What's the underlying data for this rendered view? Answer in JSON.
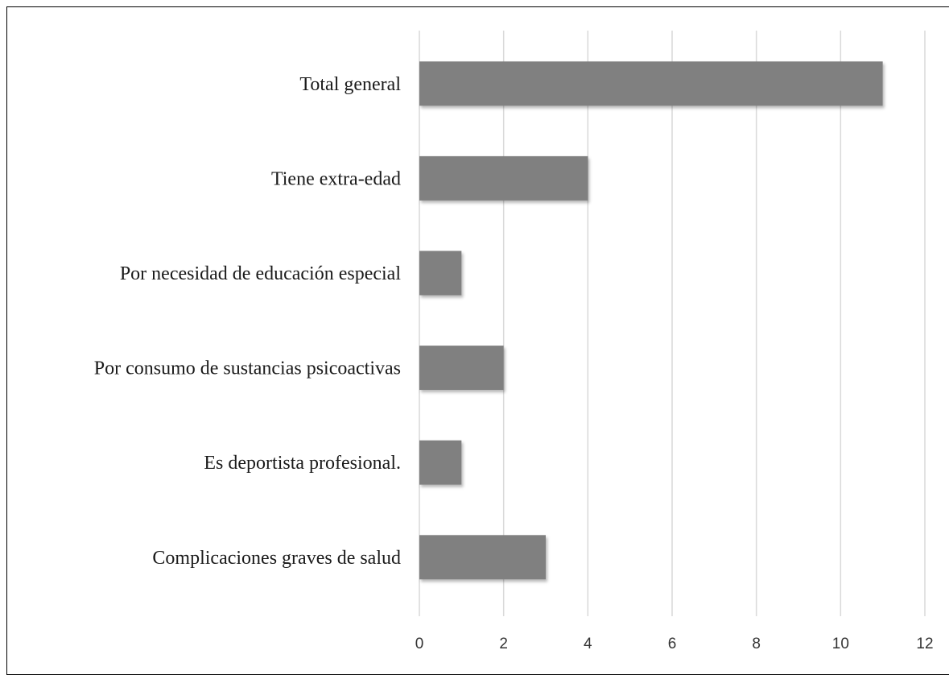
{
  "chart_data": {
    "type": "bar",
    "orientation": "horizontal",
    "title": "",
    "xlabel": "",
    "ylabel": "",
    "categories": [
      "Total general",
      "Tiene extra-edad",
      "Por necesidad de educación especial",
      "Por consumo de sustancias psicoactivas",
      "Es deportista profesional.",
      "Complicaciones graves de salud"
    ],
    "values": [
      11,
      4,
      1,
      2,
      1,
      3
    ],
    "xlim": [
      0,
      12
    ],
    "xticks": [
      0,
      2,
      4,
      6,
      8,
      10,
      12
    ],
    "xtick_labels": [
      "0",
      "2",
      "4",
      "6",
      "8",
      "10",
      "12"
    ],
    "grid": "vertical",
    "legend": "none",
    "colors": {
      "bar": "#808080",
      "bar_shadow": "#c8c8c8",
      "gridline": "#d9d9d9",
      "frame": "#000000"
    }
  }
}
